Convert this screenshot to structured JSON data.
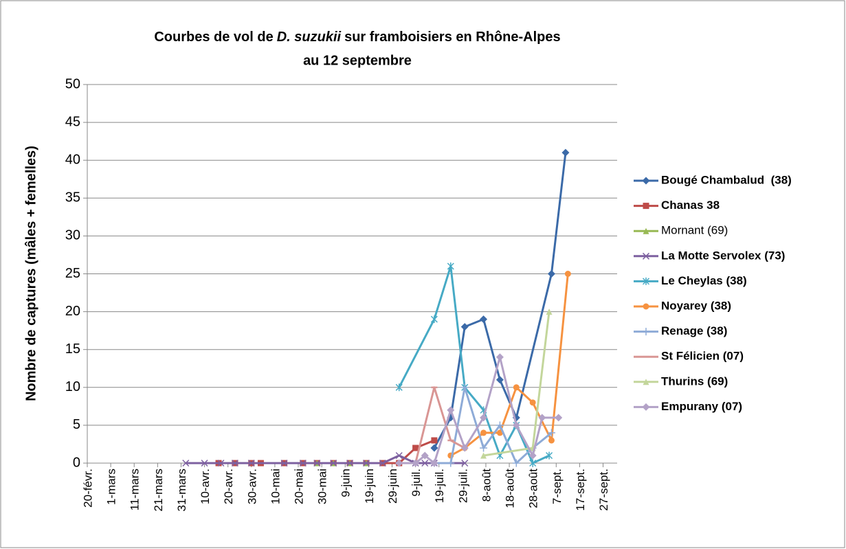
{
  "chart_data": {
    "type": "line",
    "title": [
      "Courbes de vol de",
      "D. suzukii",
      "sur framboisiers en Rhône-Alpes",
      "au 12 septembre"
    ],
    "y_label": "Nombre de captures (mâles + femelles)",
    "ylim": [
      0,
      50
    ],
    "yticks": [
      0,
      5,
      10,
      15,
      20,
      25,
      30,
      35,
      40,
      45,
      50
    ],
    "xlim": [
      "20-févr.",
      "3-oct."
    ],
    "xticks": [
      "20-févr.",
      "1-mars",
      "11-mars",
      "21-mars",
      "31-mars",
      "10-avr.",
      "20-avr.",
      "30-avr.",
      "10-mai",
      "20-mai",
      "30-mai",
      "9-juin",
      "19-juin",
      "29-juin",
      "9-juil.",
      "19-juil.",
      "29-juil.",
      "8-août",
      "18-août",
      "28-août",
      "7-sept.",
      "17-sept.",
      "27-sept."
    ],
    "grid": true,
    "legend": "right",
    "series": [
      {
        "name": "Bougé Chambalud  (38)",
        "color": "#3b6aa8",
        "marker": "diamond",
        "bold": true,
        "x": [
          "17-juil.",
          "24-juil.",
          "30-juil.",
          "7-août",
          "14-août",
          "21-août",
          "5-sept.",
          "11-sept."
        ],
        "values": [
          2,
          6,
          18,
          19,
          11,
          6,
          25,
          41
        ]
      },
      {
        "name": "Chanas 38",
        "color": "#be4b48",
        "marker": "square",
        "bold": true,
        "x": [
          "16-avr.",
          "23-avr.",
          "30-avr.",
          "4-mai",
          "14-mai",
          "22-mai",
          "28-mai",
          "4-juin",
          "11-juin",
          "18-juin",
          "25-juin",
          "2-juil.",
          "9-juil.",
          "17-juil."
        ],
        "values": [
          0,
          0,
          0,
          0,
          0,
          0,
          0,
          0,
          0,
          0,
          0,
          0,
          2,
          3
        ]
      },
      {
        "name": "Mornant (69)",
        "color": "#98b954",
        "marker": "triangle",
        "bold": false,
        "x": [
          "28-mai",
          "4-juin",
          "11-juin",
          "18-juin"
        ],
        "values": [
          0,
          0,
          0,
          0
        ]
      },
      {
        "name": "La Motte Servolex (73)",
        "color": "#7d60a0",
        "marker": "x",
        "bold": true,
        "x": [
          "2-avr.",
          "10-avr.",
          "17-avr.",
          "23-avr.",
          "30-avr.",
          "14-mai",
          "22-mai",
          "28-mai",
          "4-juin",
          "11-juin",
          "18-juin",
          "25-juin",
          "2-juil.",
          "9-juil.",
          "13-juil.",
          "17-juil.",
          "30-juil."
        ],
        "values": [
          0,
          0,
          0,
          0,
          0,
          0,
          0,
          0,
          0,
          0,
          0,
          0,
          1,
          0,
          0,
          0,
          0
        ]
      },
      {
        "name": "Le Cheylas (38)",
        "color": "#46aac5",
        "marker": "star",
        "bold": true,
        "x": [
          "2-juil.",
          "17-juil.",
          "24-juil.",
          "30-juil.",
          "7-août",
          "14-août",
          "21-août",
          "28-août",
          "4-sept."
        ],
        "values": [
          10,
          19,
          26,
          10,
          7,
          1,
          5,
          0,
          1
        ]
      },
      {
        "name": "Noyarey (38)",
        "color": "#f69240",
        "marker": "circle",
        "bold": true,
        "x": [
          "24-juil.",
          "30-juil.",
          "7-août",
          "14-août",
          "21-août",
          "28-août",
          "5-sept.",
          "12-sept."
        ],
        "values": [
          1,
          2,
          4,
          4,
          10,
          8,
          3,
          25
        ]
      },
      {
        "name": "Renage (38)",
        "color": "#8eabd7",
        "marker": "plus",
        "bold": true,
        "x": [
          "17-juil.",
          "24-juil.",
          "30-juil.",
          "7-août",
          "14-août",
          "21-août",
          "28-août",
          "5-sept."
        ],
        "values": [
          0,
          0,
          10,
          2,
          5,
          0,
          2,
          4
        ]
      },
      {
        "name": "St Félicien (07)",
        "color": "#d99694",
        "marker": "dash",
        "bold": true,
        "x": [
          "9-juil.",
          "17-juil.",
          "24-juil.",
          "30-juil."
        ],
        "values": [
          0,
          10,
          3,
          2
        ]
      },
      {
        "name": "Thurins (69)",
        "color": "#c3d69b",
        "marker": "triangle",
        "bold": true,
        "x": [
          "7-août",
          "28-août",
          "4-sept."
        ],
        "values": [
          1,
          2,
          20
        ]
      },
      {
        "name": "Empurany (07)",
        "color": "#b3a2c7",
        "marker": "diamond",
        "bold": true,
        "x": [
          "2-juil.",
          "9-juil.",
          "13-juil.",
          "17-juil.",
          "24-juil.",
          "30-juil.",
          "7-août",
          "14-août",
          "21-août",
          "28-août",
          "1-sept.",
          "8-sept."
        ],
        "values": [
          0,
          0,
          1,
          0,
          7,
          2,
          6,
          14,
          5,
          1,
          6,
          6
        ]
      }
    ]
  }
}
